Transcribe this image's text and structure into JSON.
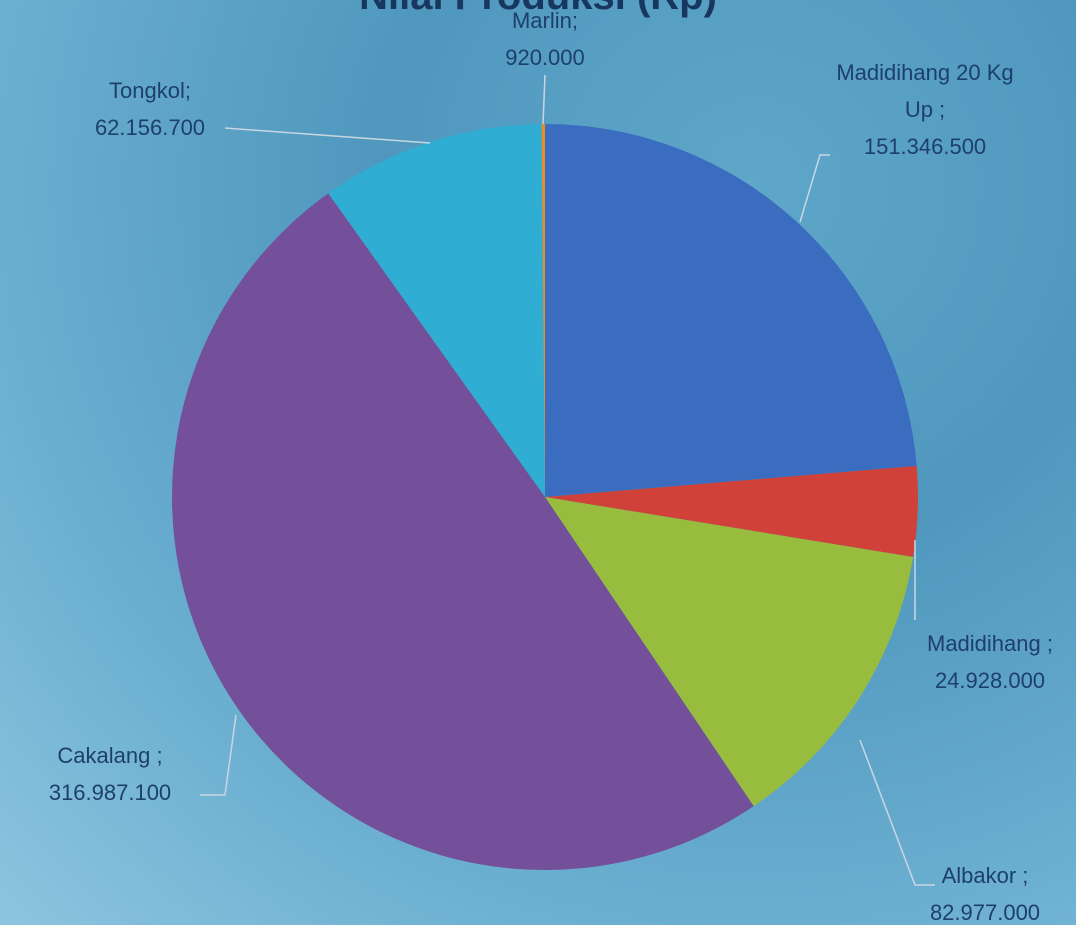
{
  "chart_data": {
    "type": "pie",
    "title": "Nilai Produksi (Rp)",
    "categories": [
      "Madidihang 20 Kg Up ;",
      "Madidihang ;",
      "Albakor ;",
      "Cakalang ;",
      "Tongkol;",
      "Marlin;"
    ],
    "values": [
      151346500,
      24928000,
      82977000,
      316987100,
      62156700,
      920000
    ],
    "value_labels": [
      "151.346.500",
      "24.928.000",
      "82.977.000",
      "316.987.100",
      "62.156.700",
      "920.000"
    ],
    "colors": [
      "#3a6cc0",
      "#d0413a",
      "#98bd3e",
      "#744f9a",
      "#2fadd3",
      "#f08a24"
    ]
  }
}
